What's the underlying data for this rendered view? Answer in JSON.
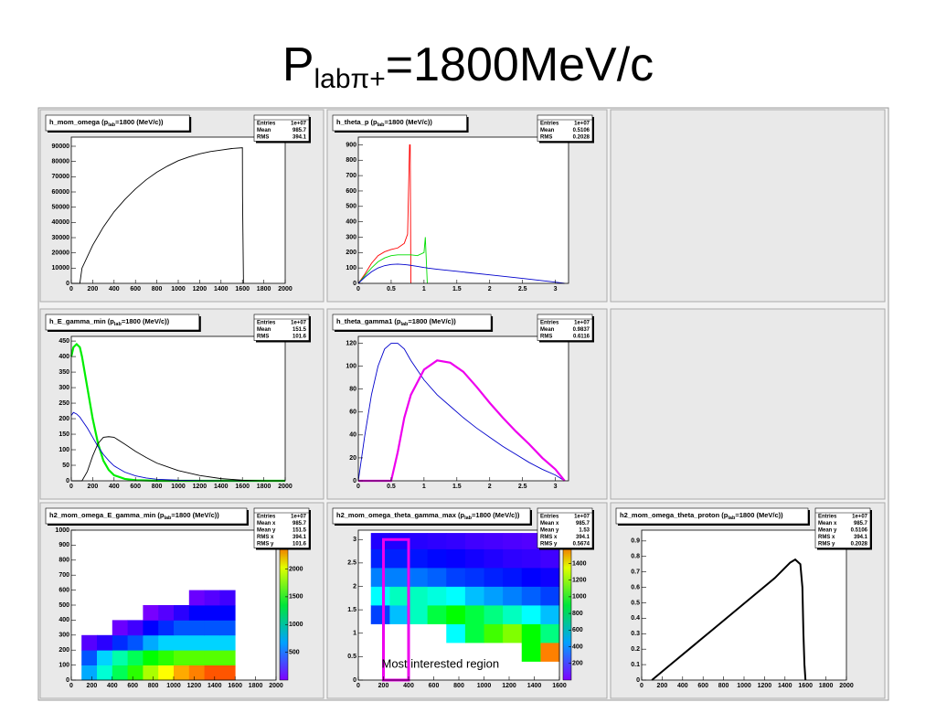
{
  "title": [
    "P",
    "labπ+",
    "=1800MeV/c"
  ],
  "annotation": "Most interested region",
  "chart_data": [
    {
      "type": "line",
      "title": [
        "h_mom_omega (p",
        "lab",
        "=1800 (MeV/c))"
      ],
      "stats": [
        [
          "Entries",
          "1e+07"
        ],
        [
          "Mean",
          "985.7"
        ],
        [
          "RMS",
          "394.1"
        ]
      ],
      "xlim": [
        0,
        2000
      ],
      "xticks": [
        0,
        200,
        400,
        600,
        800,
        1000,
        1200,
        1400,
        1600,
        1800,
        2000
      ],
      "ylim": [
        0,
        96000
      ],
      "yticks": [
        0,
        10000,
        20000,
        30000,
        40000,
        50000,
        60000,
        70000,
        80000,
        90000
      ],
      "x": [
        0,
        80,
        100,
        200,
        300,
        400,
        500,
        600,
        700,
        800,
        900,
        1000,
        1100,
        1200,
        1300,
        1400,
        1500,
        1600,
        1601,
        1610
      ],
      "series": [
        {
          "color": "#000000",
          "values": [
            0,
            0,
            10000,
            25000,
            37000,
            47000,
            55000,
            62000,
            68000,
            73000,
            77000,
            80500,
            83000,
            85000,
            86500,
            87500,
            88500,
            89000,
            58000,
            0
          ]
        }
      ]
    },
    {
      "type": "line",
      "title": [
        "h_theta_p (p",
        "lab",
        "=1800 (MeV/c))"
      ],
      "stats": [
        [
          "Entries",
          "1e+07"
        ],
        [
          "Mean",
          "0.5106"
        ],
        [
          "RMS",
          "0.2028"
        ]
      ],
      "xlim": [
        0,
        3.2
      ],
      "xticks": [
        0,
        0.5,
        1,
        1.5,
        2,
        2.5,
        3
      ],
      "ylim": [
        0,
        950
      ],
      "yticks": [
        0,
        100,
        200,
        300,
        400,
        500,
        600,
        700,
        800,
        900
      ],
      "x": [
        0,
        0.1,
        0.2,
        0.3,
        0.4,
        0.5,
        0.6,
        0.7,
        0.75,
        0.78,
        0.79,
        0.8,
        0.9,
        1.0,
        1.02,
        1.05,
        1.06,
        1.2,
        1.5,
        2,
        2.5,
        3,
        3.14
      ],
      "series": [
        {
          "color": "#ff0000",
          "values": [
            0,
            60,
            130,
            180,
            205,
            220,
            230,
            260,
            320,
            900,
            900,
            0,
            null,
            null,
            null,
            null,
            null,
            null,
            null,
            null,
            null,
            null,
            null
          ]
        },
        {
          "color": "#00dd00",
          "values": [
            0,
            50,
            100,
            140,
            165,
            180,
            185,
            185,
            185,
            185,
            185,
            185,
            180,
            200,
            300,
            0,
            null,
            null,
            null,
            null,
            null,
            null,
            null
          ]
        },
        {
          "color": "#0000cc",
          "values": [
            0,
            40,
            75,
            100,
            115,
            123,
            125,
            122,
            120,
            118,
            118,
            117,
            110,
            103,
            102,
            100,
            99,
            92,
            78,
            55,
            32,
            8,
            0
          ]
        }
      ]
    },
    {
      "type": "line",
      "title": [
        "h_E_gamma_min (p",
        "lab",
        "=1800 (MeV/c))"
      ],
      "stats": [
        [
          "Entries",
          "1e+07"
        ],
        [
          "Mean",
          "151.5"
        ],
        [
          "RMS",
          "101.6"
        ]
      ],
      "xlim": [
        0,
        2000
      ],
      "xticks": [
        0,
        200,
        400,
        600,
        800,
        1000,
        1200,
        1400,
        1600,
        1800,
        2000
      ],
      "ylim": [
        0,
        465
      ],
      "yticks": [
        0,
        50,
        100,
        150,
        200,
        250,
        300,
        350,
        400,
        450
      ],
      "x": [
        0,
        20,
        50,
        80,
        100,
        150,
        200,
        250,
        300,
        350,
        400,
        500,
        600,
        700,
        800,
        1000,
        1200,
        1400,
        1600,
        1800,
        2000
      ],
      "series": [
        {
          "color": "#00ee00",
          "values": [
            400,
            430,
            440,
            430,
            400,
            300,
            200,
            120,
            65,
            35,
            18,
            6,
            2,
            1,
            0,
            0,
            0,
            0,
            0,
            0,
            0
          ]
        },
        {
          "color": "#0000cc",
          "values": [
            210,
            220,
            215,
            205,
            195,
            170,
            140,
            110,
            85,
            65,
            48,
            28,
            16,
            9,
            5,
            2,
            1,
            0,
            0,
            0,
            0
          ]
        },
        {
          "color": "#000000",
          "values": [
            0,
            0,
            0,
            0,
            0,
            30,
            80,
            120,
            140,
            142,
            140,
            118,
            95,
            75,
            57,
            33,
            17,
            7,
            2,
            0,
            0
          ]
        }
      ]
    },
    {
      "type": "line",
      "title": [
        "h_theta_gamma1 (p",
        "lab",
        "=1800 (MeV/c))"
      ],
      "stats": [
        [
          "Entries",
          "1e+07"
        ],
        [
          "Mean",
          "0.9837"
        ],
        [
          "RMS",
          "0.6116"
        ]
      ],
      "xlim": [
        0,
        3.2
      ],
      "xticks": [
        0,
        0.5,
        1,
        1.5,
        2,
        2.5,
        3
      ],
      "ylim": [
        0,
        126
      ],
      "yticks": [
        0,
        20,
        40,
        60,
        80,
        100,
        120
      ],
      "x": [
        0,
        0.1,
        0.2,
        0.3,
        0.4,
        0.5,
        0.6,
        0.7,
        0.8,
        1,
        1.2,
        1.4,
        1.6,
        1.8,
        2,
        2.2,
        2.4,
        2.6,
        2.8,
        3,
        3.14
      ],
      "series": [
        {
          "color": "#0000cc",
          "values": [
            0,
            40,
            75,
            100,
            115,
            120,
            120,
            115,
            105,
            88,
            75,
            65,
            55,
            46,
            38,
            30,
            23,
            16,
            10,
            5,
            0
          ]
        },
        {
          "color": "#ee00ee",
          "values": [
            0,
            0,
            0,
            0,
            0,
            0,
            25,
            55,
            75,
            97,
            105,
            103,
            95,
            82,
            68,
            55,
            43,
            32,
            20,
            10,
            0
          ]
        }
      ]
    },
    {
      "type": "heatmap",
      "title": [
        "h2_mom_omega_E_gamma_min (p",
        "lab",
        "=1800 (MeV/c))"
      ],
      "stats": [
        [
          "Entries",
          "1e+07"
        ],
        [
          "Mean x",
          "985.7"
        ],
        [
          "Mean y",
          "151.5"
        ],
        [
          "RMS x",
          "394.1"
        ],
        [
          "RMS y",
          "101.6"
        ]
      ],
      "xlim": [
        0,
        2000
      ],
      "xticks": [
        0,
        200,
        400,
        600,
        800,
        1000,
        1200,
        1400,
        1600,
        1800,
        2000
      ],
      "ylim": [
        0,
        1000
      ],
      "yticks": [
        0,
        100,
        200,
        300,
        400,
        500,
        600,
        700,
        800,
        900,
        1000
      ],
      "zlim": [
        0,
        2700
      ],
      "zticks": [
        500,
        1000,
        1500,
        2000,
        2500
      ],
      "xedges": [
        100,
        250,
        400,
        550,
        700,
        850,
        1000,
        1150,
        1300,
        1450,
        1600
      ],
      "yedges": [
        0,
        100,
        200,
        300,
        400,
        500,
        600
      ],
      "z": [
        [
          700,
          1000,
          1300,
          1600,
          1900,
          2100,
          2300,
          2400,
          2500,
          2500
        ],
        [
          500,
          800,
          1100,
          1300,
          1500,
          1600,
          1700,
          1700,
          1700,
          1700
        ],
        [
          100,
          200,
          400,
          500,
          700,
          800,
          800,
          800,
          800,
          800
        ],
        [
          null,
          null,
          50,
          150,
          300,
          400,
          500,
          500,
          500,
          500
        ],
        [
          null,
          null,
          null,
          null,
          20,
          100,
          200,
          300,
          300,
          300
        ],
        [
          null,
          null,
          null,
          null,
          null,
          null,
          null,
          50,
          100,
          150
        ]
      ]
    },
    {
      "type": "heatmap",
      "title": [
        "h2_mom_omega_theta_gamma_max (p",
        "lab",
        "=1800 (MeV/c))"
      ],
      "stats": [
        [
          "Entries",
          "1e+07"
        ],
        [
          "Mean x",
          "985.7"
        ],
        [
          "Mean y",
          "1.53"
        ],
        [
          "RMS x",
          "394.1"
        ],
        [
          "RMS y",
          "0.5674"
        ]
      ],
      "xlim": [
        0,
        1600
      ],
      "xticks": [
        0,
        200,
        400,
        600,
        800,
        1000,
        1200,
        1400,
        1600
      ],
      "ylim": [
        0,
        3.2
      ],
      "yticks": [
        0,
        0.5,
        1,
        1.5,
        2,
        2.5,
        3
      ],
      "zlim": [
        0,
        1800
      ],
      "zticks": [
        200,
        400,
        600,
        800,
        1000,
        1200,
        1400,
        1600
      ],
      "xedges": [
        100,
        250,
        400,
        550,
        700,
        850,
        1000,
        1150,
        1300,
        1450,
        1600
      ],
      "yedges": [
        0,
        0.4,
        0.8,
        1.2,
        1.6,
        2,
        2.4,
        2.8,
        3.14
      ],
      "z": [
        [
          null,
          null,
          null,
          null,
          null,
          null,
          null,
          null,
          null,
          null
        ],
        [
          null,
          null,
          null,
          null,
          null,
          null,
          null,
          null,
          1000,
          1600
        ],
        [
          null,
          null,
          null,
          null,
          600,
          900,
          1100,
          1200,
          1000,
          800
        ],
        [
          300,
          500,
          700,
          900,
          1000,
          900,
          800,
          700,
          600,
          500
        ],
        [
          600,
          700,
          700,
          650,
          600,
          500,
          450,
          400,
          350,
          300
        ],
        [
          400,
          400,
          380,
          350,
          300,
          280,
          250,
          230,
          200,
          180
        ],
        [
          250,
          250,
          230,
          210,
          190,
          170,
          150,
          130,
          120,
          100
        ],
        [
          150,
          150,
          140,
          130,
          120,
          100,
          90,
          80,
          70,
          60
        ]
      ],
      "region": {
        "x": [
          200,
          400
        ],
        "y": [
          0,
          3
        ],
        "color": "#ee00ee"
      }
    },
    {
      "type": "line",
      "title": [
        "h2_mom_omega_theta_proton (p",
        "lab",
        "=1800 (MeV/c))"
      ],
      "stats": [
        [
          "Entries",
          "1e+07"
        ],
        [
          "Mean x",
          "985.7"
        ],
        [
          "Mean y",
          "0.5106"
        ],
        [
          "RMS x",
          "394.1"
        ],
        [
          "RMS y",
          "0.2028"
        ]
      ],
      "xlim": [
        0,
        2000
      ],
      "xticks": [
        0,
        200,
        400,
        600,
        800,
        1000,
        1200,
        1400,
        1600,
        1800,
        2000
      ],
      "ylim": [
        0,
        0.97
      ],
      "yticks": [
        0,
        0.1,
        0.2,
        0.3,
        0.4,
        0.5,
        0.6,
        0.7,
        0.8,
        0.9
      ],
      "x": [
        100,
        300,
        500,
        700,
        900,
        1100,
        1300,
        1450,
        1500,
        1550,
        1570,
        1580,
        1590,
        1600
      ],
      "series": [
        {
          "color": "#000000",
          "values": [
            0,
            0.11,
            0.22,
            0.33,
            0.44,
            0.55,
            0.66,
            0.76,
            0.78,
            0.75,
            0.6,
            0.3,
            0.1,
            0
          ]
        }
      ]
    }
  ]
}
